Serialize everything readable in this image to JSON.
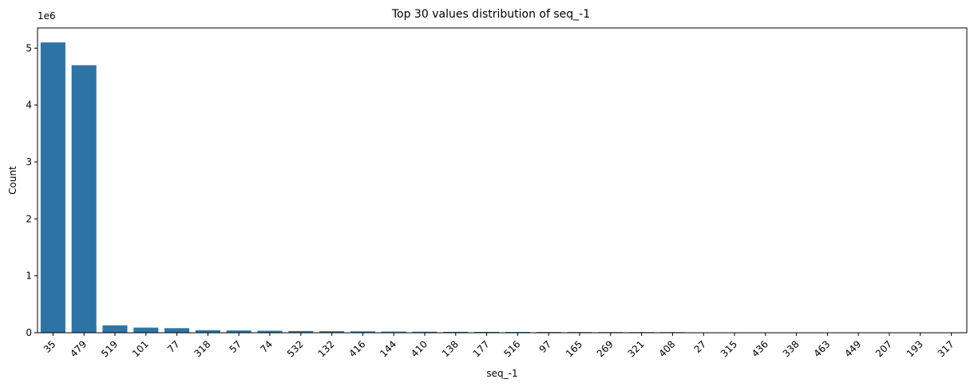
{
  "chart_data": {
    "type": "bar",
    "title": "Top 30 values distribution of seq_-1",
    "xlabel": "seq_-1",
    "ylabel": "Count",
    "y_offset_label": "1e6",
    "categories": [
      "35",
      "479",
      "519",
      "101",
      "77",
      "318",
      "57",
      "74",
      "532",
      "132",
      "416",
      "144",
      "410",
      "138",
      "177",
      "516",
      "97",
      "165",
      "269",
      "321",
      "408",
      "27",
      "315",
      "436",
      "338",
      "463",
      "449",
      "207",
      "193",
      "317"
    ],
    "values": [
      5100000,
      4700000,
      130000,
      90000,
      80000,
      45000,
      40000,
      35000,
      30000,
      27000,
      24000,
      20000,
      18000,
      16000,
      15000,
      14000,
      13000,
      12000,
      11500,
      11000,
      10500,
      7000,
      6000,
      5500,
      5200,
      5000,
      4800,
      4600,
      4400,
      4200
    ],
    "y_ticks": [
      0,
      1000000,
      2000000,
      3000000,
      4000000,
      5000000
    ],
    "y_tick_labels": [
      "0",
      "1",
      "2",
      "3",
      "4",
      "5"
    ],
    "ylim": [
      0,
      5355000
    ],
    "bar_color": "#2e73a6",
    "grid": false,
    "legend": false
  }
}
